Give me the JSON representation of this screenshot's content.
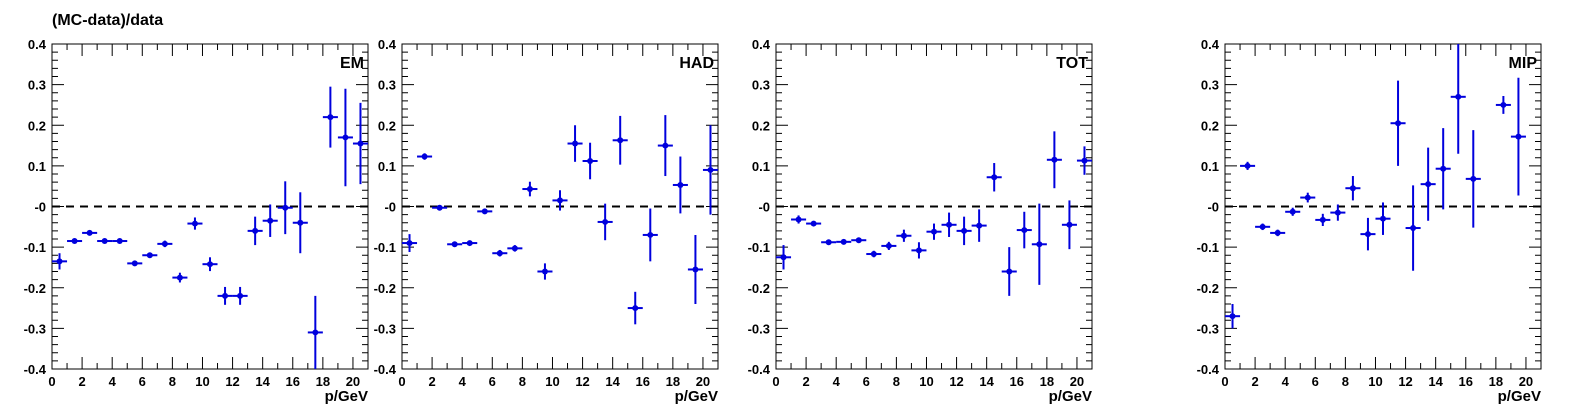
{
  "figure": {
    "ylabel": "(MC-data)/data",
    "xlabel": "p/GeV",
    "colors": {
      "marker": "#0000dd",
      "frame": "#000000",
      "reference": "#000000"
    }
  },
  "chart_data": [
    {
      "type": "scatter",
      "label": "EM",
      "xlim": [
        0,
        21
      ],
      "ylim": [
        -0.4,
        0.4
      ],
      "x_ticks": [
        "0",
        "2",
        "4",
        "6",
        "8",
        "10",
        "12",
        "14",
        "16",
        "18",
        "20"
      ],
      "y_ticks": [
        "-0.4",
        "-0.3",
        "-0.2",
        "-0.1",
        "-0",
        "0.1",
        "0.2",
        "0.3",
        "0.4"
      ],
      "reference_line": 0,
      "points": [
        {
          "x": 0.5,
          "y": -0.135,
          "err": 0.02
        },
        {
          "x": 1.5,
          "y": -0.085,
          "err": 0.005
        },
        {
          "x": 2.5,
          "y": -0.065,
          "err": 0.005
        },
        {
          "x": 3.5,
          "y": -0.085,
          "err": 0.005
        },
        {
          "x": 4.5,
          "y": -0.085,
          "err": 0.005
        },
        {
          "x": 5.5,
          "y": -0.14,
          "err": 0.005
        },
        {
          "x": 6.5,
          "y": -0.12,
          "err": 0.005
        },
        {
          "x": 7.5,
          "y": -0.092,
          "err": 0.008
        },
        {
          "x": 8.5,
          "y": -0.175,
          "err": 0.012
        },
        {
          "x": 9.5,
          "y": -0.042,
          "err": 0.015
        },
        {
          "x": 10.5,
          "y": -0.142,
          "err": 0.017
        },
        {
          "x": 11.5,
          "y": -0.22,
          "err": 0.022
        },
        {
          "x": 12.5,
          "y": -0.22,
          "err": 0.022
        },
        {
          "x": 13.5,
          "y": -0.06,
          "err": 0.035
        },
        {
          "x": 14.5,
          "y": -0.035,
          "err": 0.04
        },
        {
          "x": 15.5,
          "y": -0.003,
          "err": 0.065
        },
        {
          "x": 16.5,
          "y": -0.04,
          "err": 0.075
        },
        {
          "x": 17.5,
          "y": -0.31,
          "err": 0.09
        },
        {
          "x": 18.5,
          "y": 0.22,
          "err": 0.075
        },
        {
          "x": 19.5,
          "y": 0.17,
          "err": 0.12
        },
        {
          "x": 20.5,
          "y": 0.155,
          "err": 0.1
        }
      ]
    },
    {
      "type": "scatter",
      "label": "HAD",
      "xlim": [
        0,
        21
      ],
      "ylim": [
        -0.4,
        0.4
      ],
      "x_ticks": [
        "0",
        "2",
        "4",
        "6",
        "8",
        "10",
        "12",
        "14",
        "16",
        "18",
        "20"
      ],
      "y_ticks": [
        "-0.4",
        "-0.3",
        "-0.2",
        "-0.1",
        "-0",
        "0.1",
        "0.2",
        "0.3",
        "0.4"
      ],
      "reference_line": 0,
      "points": [
        {
          "x": 0.5,
          "y": -0.09,
          "err": 0.022
        },
        {
          "x": 1.5,
          "y": 0.123,
          "err": 0.008
        },
        {
          "x": 2.5,
          "y": -0.003,
          "err": 0.004
        },
        {
          "x": 3.5,
          "y": -0.093,
          "err": 0.005
        },
        {
          "x": 4.5,
          "y": -0.09,
          "err": 0.005
        },
        {
          "x": 5.5,
          "y": -0.012,
          "err": 0.005
        },
        {
          "x": 6.5,
          "y": -0.115,
          "err": 0.008
        },
        {
          "x": 7.5,
          "y": -0.103,
          "err": 0.008
        },
        {
          "x": 8.5,
          "y": 0.043,
          "err": 0.018
        },
        {
          "x": 9.5,
          "y": -0.16,
          "err": 0.02
        },
        {
          "x": 10.5,
          "y": 0.015,
          "err": 0.025
        },
        {
          "x": 11.5,
          "y": 0.155,
          "err": 0.045
        },
        {
          "x": 12.5,
          "y": 0.112,
          "err": 0.045
        },
        {
          "x": 13.5,
          "y": -0.038,
          "err": 0.045
        },
        {
          "x": 14.5,
          "y": 0.163,
          "err": 0.06
        },
        {
          "x": 15.5,
          "y": -0.25,
          "err": 0.04
        },
        {
          "x": 16.5,
          "y": -0.07,
          "err": 0.065
        },
        {
          "x": 17.5,
          "y": 0.15,
          "err": 0.075
        },
        {
          "x": 18.5,
          "y": 0.053,
          "err": 0.07
        },
        {
          "x": 19.5,
          "y": -0.155,
          "err": 0.085
        },
        {
          "x": 20.5,
          "y": 0.09,
          "err": 0.11
        }
      ]
    },
    {
      "type": "scatter",
      "label": "TOT",
      "xlim": [
        0,
        21
      ],
      "ylim": [
        -0.4,
        0.4
      ],
      "x_ticks": [
        "0",
        "2",
        "4",
        "6",
        "8",
        "10",
        "12",
        "14",
        "16",
        "18",
        "20"
      ],
      "y_ticks": [
        "-0.4",
        "-0.3",
        "-0.2",
        "-0.1",
        "-0",
        "0.1",
        "0.2",
        "0.3",
        "0.4"
      ],
      "reference_line": 0,
      "points": [
        {
          "x": 0.5,
          "y": -0.125,
          "err": 0.03
        },
        {
          "x": 1.5,
          "y": -0.032,
          "err": 0.01
        },
        {
          "x": 2.5,
          "y": -0.042,
          "err": 0.005
        },
        {
          "x": 3.5,
          "y": -0.088,
          "err": 0.005
        },
        {
          "x": 4.5,
          "y": -0.087,
          "err": 0.005
        },
        {
          "x": 5.5,
          "y": -0.083,
          "err": 0.005
        },
        {
          "x": 6.5,
          "y": -0.117,
          "err": 0.008
        },
        {
          "x": 7.5,
          "y": -0.097,
          "err": 0.01
        },
        {
          "x": 8.5,
          "y": -0.072,
          "err": 0.015
        },
        {
          "x": 9.5,
          "y": -0.108,
          "err": 0.02
        },
        {
          "x": 10.5,
          "y": -0.062,
          "err": 0.02
        },
        {
          "x": 11.5,
          "y": -0.045,
          "err": 0.03
        },
        {
          "x": 12.5,
          "y": -0.06,
          "err": 0.035
        },
        {
          "x": 13.5,
          "y": -0.047,
          "err": 0.04
        },
        {
          "x": 14.5,
          "y": 0.072,
          "err": 0.035
        },
        {
          "x": 15.5,
          "y": -0.16,
          "err": 0.06
        },
        {
          "x": 16.5,
          "y": -0.058,
          "err": 0.045
        },
        {
          "x": 17.5,
          "y": -0.093,
          "err": 0.1
        },
        {
          "x": 18.5,
          "y": 0.115,
          "err": 0.07
        },
        {
          "x": 19.5,
          "y": -0.045,
          "err": 0.06
        },
        {
          "x": 20.5,
          "y": 0.113,
          "err": 0.035
        }
      ]
    },
    {
      "type": "scatter",
      "label": "MIP",
      "xlim": [
        0,
        21
      ],
      "ylim": [
        -0.4,
        0.4
      ],
      "x_ticks": [
        "0",
        "2",
        "4",
        "6",
        "8",
        "10",
        "12",
        "14",
        "16",
        "18",
        "20"
      ],
      "y_ticks": [
        "-0.4",
        "-0.3",
        "-0.2",
        "-0.1",
        "-0",
        "0.1",
        "0.2",
        "0.3",
        "0.4"
      ],
      "reference_line": 0,
      "points": [
        {
          "x": 0.5,
          "y": -0.27,
          "err": 0.03
        },
        {
          "x": 1.5,
          "y": 0.1,
          "err": 0.01
        },
        {
          "x": 2.5,
          "y": -0.05,
          "err": 0.008
        },
        {
          "x": 3.5,
          "y": -0.065,
          "err": 0.008
        },
        {
          "x": 4.5,
          "y": -0.013,
          "err": 0.01
        },
        {
          "x": 5.5,
          "y": 0.022,
          "err": 0.012
        },
        {
          "x": 6.5,
          "y": -0.033,
          "err": 0.015
        },
        {
          "x": 7.5,
          "y": -0.015,
          "err": 0.02
        },
        {
          "x": 8.5,
          "y": 0.045,
          "err": 0.03
        },
        {
          "x": 9.5,
          "y": -0.068,
          "err": 0.04
        },
        {
          "x": 10.5,
          "y": -0.03,
          "err": 0.04
        },
        {
          "x": 11.5,
          "y": 0.205,
          "err": 0.105
        },
        {
          "x": 12.5,
          "y": -0.053,
          "err": 0.105
        },
        {
          "x": 13.5,
          "y": 0.055,
          "err": 0.09
        },
        {
          "x": 14.5,
          "y": 0.093,
          "err": 0.1
        },
        {
          "x": 15.5,
          "y": 0.27,
          "err": 0.14
        },
        {
          "x": 16.5,
          "y": 0.068,
          "err": 0.12
        },
        {
          "x": 18.5,
          "y": 0.25,
          "err": 0.022
        },
        {
          "x": 19.5,
          "y": 0.172,
          "err": 0.145
        }
      ]
    }
  ]
}
